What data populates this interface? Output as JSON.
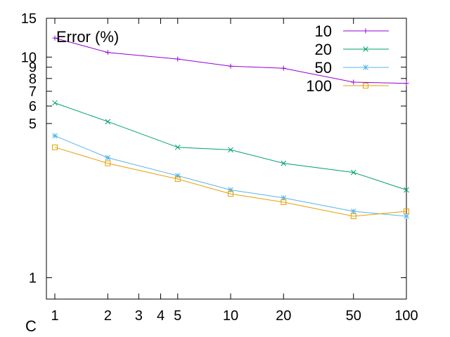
{
  "chart_data": {
    "type": "line",
    "title": "Error (%)",
    "xlabel": "C",
    "ylabel": "",
    "x_scale": "log",
    "y_scale": "log",
    "xlim": [
      1,
      100
    ],
    "ylim": [
      0.8,
      15
    ],
    "x_ticks": [
      1,
      2,
      3,
      4,
      5,
      10,
      20,
      50,
      100
    ],
    "y_ticks": [
      1,
      5,
      6,
      7,
      8,
      9,
      10,
      15
    ],
    "x": [
      1,
      2,
      5,
      10,
      20,
      50,
      100
    ],
    "legend_position": "top-right",
    "grid": false,
    "series": [
      {
        "name": "10",
        "color": "#9400d3",
        "marker": "plus",
        "values": [
          12.2,
          10.5,
          9.8,
          9.1,
          8.9,
          7.7,
          7.6
        ]
      },
      {
        "name": "20",
        "color": "#009e73",
        "marker": "cross",
        "values": [
          6.2,
          5.1,
          3.9,
          3.8,
          3.3,
          3.0,
          2.5
        ]
      },
      {
        "name": "50",
        "color": "#56b4e9",
        "marker": "star",
        "values": [
          4.4,
          3.5,
          2.9,
          2.5,
          2.3,
          2.0,
          1.9
        ]
      },
      {
        "name": "100",
        "color": "#e69f00",
        "marker": "square",
        "values": [
          3.9,
          3.3,
          2.8,
          2.4,
          2.2,
          1.9,
          2.0
        ]
      }
    ]
  }
}
